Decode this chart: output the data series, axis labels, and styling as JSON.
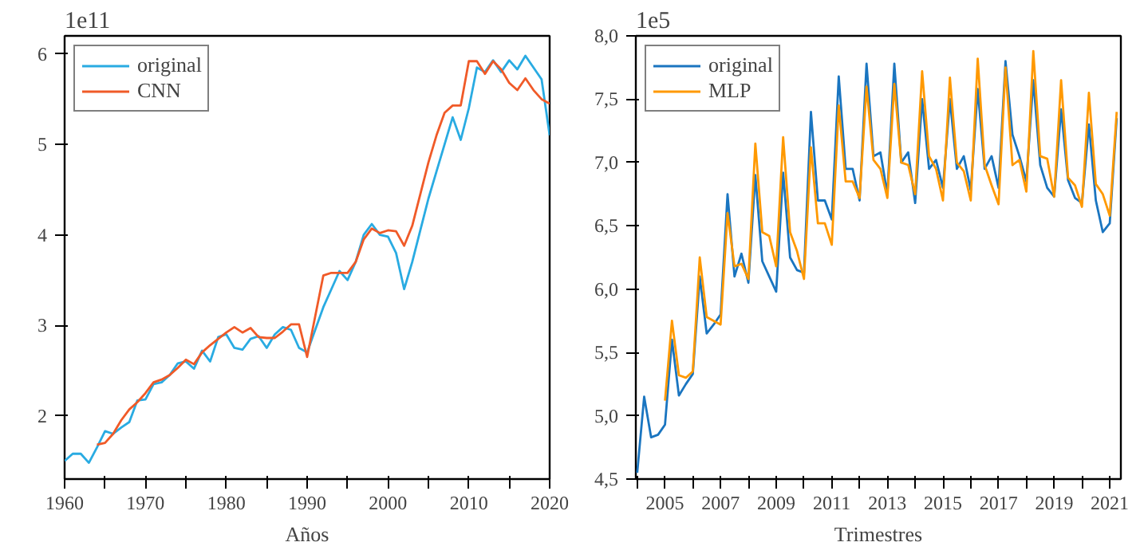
{
  "chart_data": [
    {
      "type": "line",
      "xlabel": "Años",
      "annotations": [
        "1e11"
      ],
      "legend": "top left",
      "grid": false,
      "xlim": [
        1960,
        2020
      ],
      "ylim": [
        1.3,
        6.2
      ],
      "xticks": [
        1960,
        {
          "value": 1965,
          "label": null
        },
        1970,
        {
          "value": 1975,
          "label": null
        },
        1980,
        {
          "value": 1985,
          "label": null
        },
        1990,
        {
          "value": 1995,
          "label": null
        },
        2000,
        {
          "value": 2005,
          "label": null
        },
        2010,
        {
          "value": 2015,
          "label": null
        },
        2020
      ],
      "yticks": [
        2,
        3,
        4,
        5,
        6
      ],
      "series": [
        {
          "name": "original",
          "color": "#29abe2",
          "x": [
            1960,
            1961,
            1962,
            1963,
            1964,
            1965,
            1966,
            1967,
            1968,
            1969,
            1970,
            1971,
            1972,
            1973,
            1974,
            1975,
            1976,
            1977,
            1978,
            1979,
            1980,
            1981,
            1982,
            1983,
            1984,
            1985,
            1986,
            1987,
            1988,
            1989,
            1990,
            1991,
            1992,
            1993,
            1994,
            1995,
            1996,
            1997,
            1998,
            1999,
            2000,
            2001,
            2002,
            2003,
            2004,
            2005,
            2006,
            2007,
            2008,
            2009,
            2010,
            2011,
            2012,
            2013,
            2014,
            2015,
            2016,
            2017,
            2018,
            2019,
            2020
          ],
          "values": [
            1.5,
            1.58,
            1.58,
            1.48,
            1.65,
            1.83,
            1.8,
            1.87,
            1.93,
            2.17,
            2.18,
            2.35,
            2.37,
            2.45,
            2.58,
            2.6,
            2.52,
            2.72,
            2.6,
            2.87,
            2.9,
            2.75,
            2.73,
            2.85,
            2.88,
            2.75,
            2.9,
            2.98,
            2.95,
            2.75,
            2.7,
            2.95,
            3.2,
            3.4,
            3.6,
            3.5,
            3.7,
            4.0,
            4.12,
            4.0,
            3.98,
            3.8,
            3.4,
            3.7,
            4.05,
            4.4,
            4.7,
            5.0,
            5.3,
            5.05,
            5.4,
            5.85,
            5.8,
            5.93,
            5.8,
            5.93,
            5.83,
            5.98,
            5.85,
            5.72,
            5.1
          ]
        },
        {
          "name": "CNN",
          "color": "#f05a28",
          "x": [
            1964,
            1965,
            1966,
            1967,
            1968,
            1969,
            1970,
            1971,
            1972,
            1973,
            1974,
            1975,
            1976,
            1977,
            1978,
            1979,
            1980,
            1981,
            1982,
            1983,
            1984,
            1985,
            1986,
            1987,
            1988,
            1989,
            1990,
            1991,
            1992,
            1993,
            1994,
            1995,
            1996,
            1997,
            1998,
            1999,
            2000,
            2001,
            2002,
            2003,
            2004,
            2005,
            2006,
            2007,
            2008,
            2009,
            2010,
            2011,
            2012,
            2013,
            2014,
            2015,
            2016,
            2017,
            2018,
            2019,
            2020
          ],
          "values": [
            1.68,
            1.7,
            1.8,
            1.95,
            2.07,
            2.15,
            2.25,
            2.37,
            2.4,
            2.45,
            2.53,
            2.62,
            2.57,
            2.7,
            2.78,
            2.85,
            2.92,
            2.98,
            2.92,
            2.97,
            2.87,
            2.86,
            2.86,
            2.93,
            3.01,
            3.01,
            2.65,
            3.1,
            3.55,
            3.58,
            3.58,
            3.58,
            3.7,
            3.95,
            4.07,
            4.02,
            4.05,
            4.04,
            3.88,
            4.1,
            4.45,
            4.8,
            5.1,
            5.35,
            5.43,
            5.43,
            5.92,
            5.92,
            5.78,
            5.92,
            5.83,
            5.68,
            5.6,
            5.73,
            5.6,
            5.5,
            5.45
          ]
        }
      ]
    },
    {
      "type": "line",
      "xlabel": "Trimestres",
      "annotations": [
        "1e5"
      ],
      "legend": "top left",
      "grid": false,
      "xlim": [
        2003.95,
        2021.4
      ],
      "ylim": [
        4.5,
        8.0
      ],
      "xticks": [
        {
          "value": 2004,
          "label": null
        },
        2005,
        {
          "value": 2006,
          "label": null
        },
        2007,
        {
          "value": 2008,
          "label": null
        },
        2009,
        {
          "value": 2010,
          "label": null
        },
        2011,
        {
          "value": 2012,
          "label": null
        },
        2013,
        {
          "value": 2014,
          "label": null
        },
        2015,
        {
          "value": 2016,
          "label": null
        },
        2017,
        {
          "value": 2018,
          "label": null
        },
        2019,
        {
          "value": 2020,
          "label": null
        },
        2021
      ],
      "yticks": [
        {
          "value": 4.5,
          "label": "4,5"
        },
        {
          "value": 5.0,
          "label": "5,0"
        },
        {
          "value": 5.5,
          "label": "5,5"
        },
        {
          "value": 6.0,
          "label": "6,0"
        },
        {
          "value": 6.5,
          "label": "6,5"
        },
        {
          "value": 7.0,
          "label": "7,0"
        },
        {
          "value": 7.5,
          "label": "7,5"
        },
        {
          "value": 8.0,
          "label": "8,0"
        }
      ],
      "series": [
        {
          "name": "original",
          "color": "#1a75c0",
          "x": [
            2004,
            2004.25,
            2004.5,
            2004.75,
            2005,
            2005.25,
            2005.5,
            2005.75,
            2006,
            2006.25,
            2006.5,
            2006.75,
            2007,
            2007.25,
            2007.5,
            2007.75,
            2008,
            2008.25,
            2008.5,
            2008.75,
            2009,
            2009.25,
            2009.5,
            2009.75,
            2010,
            2010.25,
            2010.5,
            2010.75,
            2011,
            2011.25,
            2011.5,
            2011.75,
            2012,
            2012.25,
            2012.5,
            2012.75,
            2013,
            2013.25,
            2013.5,
            2013.75,
            2014,
            2014.25,
            2014.5,
            2014.75,
            2015,
            2015.25,
            2015.5,
            2015.75,
            2016,
            2016.25,
            2016.5,
            2016.75,
            2017,
            2017.25,
            2017.5,
            2017.75,
            2018,
            2018.25,
            2018.5,
            2018.75,
            2019,
            2019.25,
            2019.5,
            2019.75,
            2020,
            2020.25,
            2020.5,
            2020.75,
            2021,
            2021.25
          ],
          "values": [
            4.55,
            5.15,
            4.83,
            4.85,
            4.93,
            5.6,
            5.16,
            5.25,
            5.33,
            6.1,
            5.65,
            5.72,
            5.8,
            6.75,
            6.1,
            6.28,
            6.05,
            6.9,
            6.22,
            6.1,
            5.98,
            6.92,
            6.25,
            6.15,
            6.13,
            7.4,
            6.7,
            6.7,
            6.55,
            7.68,
            6.95,
            6.95,
            6.7,
            7.78,
            7.05,
            7.08,
            6.75,
            7.78,
            7.0,
            7.08,
            6.68,
            7.5,
            6.95,
            7.02,
            6.8,
            7.5,
            6.95,
            7.05,
            6.78,
            7.58,
            6.95,
            7.05,
            6.8,
            7.8,
            7.22,
            7.05,
            6.85,
            7.65,
            6.98,
            6.8,
            6.73,
            7.42,
            6.86,
            6.72,
            6.68,
            7.3,
            6.7,
            6.45,
            6.52,
            7.35
          ]
        },
        {
          "name": "MLP",
          "color": "#ff9900",
          "x": [
            2005,
            2005.25,
            2005.5,
            2005.75,
            2006,
            2006.25,
            2006.5,
            2006.75,
            2007,
            2007.25,
            2007.5,
            2007.75,
            2008,
            2008.25,
            2008.5,
            2008.75,
            2009,
            2009.25,
            2009.5,
            2009.75,
            2010,
            2010.25,
            2010.5,
            2010.75,
            2011,
            2011.25,
            2011.5,
            2011.75,
            2012,
            2012.25,
            2012.5,
            2012.75,
            2013,
            2013.25,
            2013.5,
            2013.75,
            2014,
            2014.25,
            2014.5,
            2014.75,
            2015,
            2015.25,
            2015.5,
            2015.75,
            2016,
            2016.25,
            2016.5,
            2016.75,
            2017,
            2017.25,
            2017.5,
            2017.75,
            2018,
            2018.25,
            2018.5,
            2018.75,
            2019,
            2019.25,
            2019.5,
            2019.75,
            2020,
            2020.25,
            2020.5,
            2020.75,
            2021,
            2021.25
          ],
          "values": [
            5.12,
            5.75,
            5.32,
            5.3,
            5.35,
            6.25,
            5.78,
            5.75,
            5.72,
            6.6,
            6.18,
            6.2,
            6.08,
            7.15,
            6.45,
            6.42,
            6.18,
            7.2,
            6.45,
            6.3,
            6.08,
            7.12,
            6.52,
            6.52,
            6.35,
            7.45,
            6.85,
            6.85,
            6.72,
            7.6,
            7.02,
            6.95,
            6.72,
            7.62,
            7.0,
            6.98,
            6.75,
            7.72,
            7.05,
            6.95,
            6.7,
            7.67,
            7.0,
            6.93,
            6.7,
            7.82,
            6.98,
            6.82,
            6.67,
            7.75,
            6.98,
            7.02,
            6.77,
            7.88,
            7.05,
            7.03,
            6.73,
            7.65,
            6.88,
            6.82,
            6.65,
            7.55,
            6.83,
            6.75,
            6.58,
            7.4
          ]
        }
      ]
    }
  ]
}
